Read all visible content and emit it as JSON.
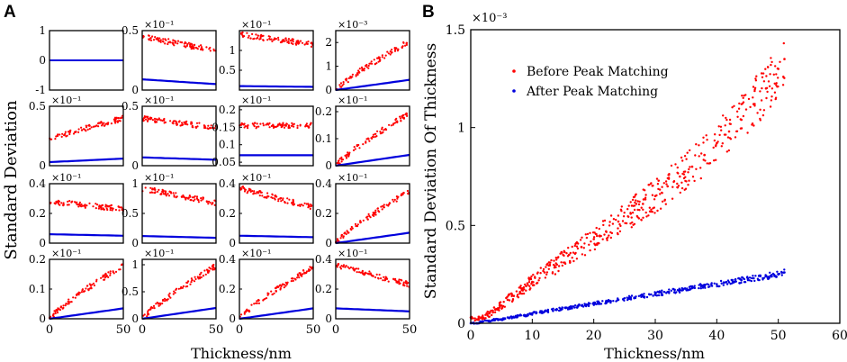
{
  "panel_labels": {
    "a": "A",
    "b": "B"
  },
  "colors": {
    "before": "#ff0000",
    "after": "#0000dd",
    "axis": "#000000"
  },
  "panel_a": {
    "xlabel": "Thickness/nm",
    "ylabel": "Standard Deviation",
    "x_ticks": [
      "0",
      "50"
    ],
    "subplots": [
      {
        "title": "",
        "yticks": [
          "1",
          "0",
          "-1"
        ],
        "ylim": [
          -1,
          1
        ],
        "before": {
          "start": 0,
          "end": 0
        },
        "after": {
          "start": 0,
          "end": 0
        }
      },
      {
        "title": "×10⁻¹",
        "yticks": [
          "0.5",
          "0"
        ],
        "ylim": [
          0,
          0.5
        ],
        "before": {
          "start": 0.45,
          "end": 0.33
        },
        "after": {
          "start": 0.09,
          "end": 0.05
        }
      },
      {
        "title": "×10⁻¹",
        "yticks": [
          "1",
          "0.5"
        ],
        "ylim": [
          0,
          1.5
        ],
        "before": {
          "start": 1.4,
          "end": 1.15
        },
        "after": {
          "start": 0.1,
          "end": 0.08
        }
      },
      {
        "title": "×10⁻³",
        "yticks": [
          "2",
          "1",
          "0"
        ],
        "ylim": [
          0,
          2.5
        ],
        "before": {
          "start": 0,
          "end": 2.05
        },
        "after": {
          "start": 0,
          "end": 0.43
        }
      },
      {
        "title": "×10⁻¹",
        "yticks": [
          "0.5",
          "0"
        ],
        "ylim": [
          0,
          0.5
        ],
        "before": {
          "start": 0.23,
          "end": 0.4
        },
        "after": {
          "start": 0.03,
          "end": 0.06
        }
      },
      {
        "title": "×10⁻¹",
        "yticks": [
          "0.5",
          "0"
        ],
        "ylim": [
          0,
          0.5
        ],
        "before": {
          "start": 0.4,
          "end": 0.32
        },
        "after": {
          "start": 0.07,
          "end": 0.05
        }
      },
      {
        "title": "×10⁻¹",
        "yticks": [
          "0.2",
          "0.15",
          "0.1",
          "0.05"
        ],
        "ylim": [
          0.04,
          0.21
        ],
        "before": {
          "start": 0.155,
          "end": 0.155
        },
        "after": {
          "start": 0.07,
          "end": 0.07
        }
      },
      {
        "title": "×10⁻¹",
        "yticks": [
          "0.2",
          "0.1",
          "0"
        ],
        "ylim": [
          0,
          0.22
        ],
        "before": {
          "start": 0,
          "end": 0.195
        },
        "after": {
          "start": 0,
          "end": 0.04
        }
      },
      {
        "title": "×10⁻¹",
        "yticks": [
          "0.4",
          "0.2",
          "0"
        ],
        "ylim": [
          0,
          0.4
        ],
        "before": {
          "start": 0.28,
          "end": 0.23
        },
        "after": {
          "start": 0.06,
          "end": 0.05
        }
      },
      {
        "title": "×10⁻¹",
        "yticks": [
          "1",
          "0.5",
          "0"
        ],
        "ylim": [
          0,
          1
        ],
        "before": {
          "start": 0.92,
          "end": 0.68
        },
        "after": {
          "start": 0.12,
          "end": 0.09
        }
      },
      {
        "title": "×10⁻¹",
        "yticks": [
          "0.4",
          "0.2",
          "0"
        ],
        "ylim": [
          0,
          0.4
        ],
        "before": {
          "start": 0.37,
          "end": 0.24
        },
        "after": {
          "start": 0.05,
          "end": 0.04
        }
      },
      {
        "title": "×10⁻¹",
        "yticks": [
          "0.4",
          "0.2",
          "0"
        ],
        "ylim": [
          0,
          0.4
        ],
        "before": {
          "start": 0,
          "end": 0.35
        },
        "after": {
          "start": 0,
          "end": 0.07
        }
      },
      {
        "title": "×10⁻¹",
        "yticks": [
          "0.2",
          "0.1",
          "0"
        ],
        "ylim": [
          0,
          0.2
        ],
        "before": {
          "start": 0,
          "end": 0.18
        },
        "after": {
          "start": 0,
          "end": 0.035
        }
      },
      {
        "title": "×10⁻¹",
        "yticks": [
          "1",
          "0.5",
          "0"
        ],
        "ylim": [
          0,
          1.1
        ],
        "before": {
          "start": 0,
          "end": 0.98
        },
        "after": {
          "start": 0,
          "end": 0.2
        }
      },
      {
        "title": "×10⁻¹",
        "yticks": [
          "0.4",
          "0.2",
          "0"
        ],
        "ylim": [
          0,
          0.4
        ],
        "before": {
          "start": 0,
          "end": 0.35
        },
        "after": {
          "start": 0,
          "end": 0.07
        }
      },
      {
        "title": "×10⁻¹",
        "yticks": [
          "0.4",
          "0.2",
          "0"
        ],
        "ylim": [
          0,
          0.4
        ],
        "before": {
          "start": 0.36,
          "end": 0.23
        },
        "after": {
          "start": 0.07,
          "end": 0.05
        }
      }
    ]
  },
  "chart_data": {
    "type": "scatter",
    "title": "",
    "multiplier": "×10⁻³",
    "xlabel": "Thickness/nm",
    "ylabel": "Standard Deviation Of Thickness",
    "xlim": [
      0,
      60
    ],
    "ylim": [
      0,
      1.5
    ],
    "x_ticks": [
      0,
      10,
      20,
      30,
      40,
      50,
      60
    ],
    "y_ticks": [
      0,
      0.5,
      1,
      1.5
    ],
    "y_tick_labels": [
      "0",
      "0.5",
      "1",
      "1.5"
    ],
    "legend_position": "top-left",
    "series": [
      {
        "name": "Before Peak Matching",
        "color": "#ff0000",
        "x": [
          0,
          1,
          2,
          3,
          4,
          5,
          6,
          7,
          8,
          9,
          10,
          12,
          14,
          16,
          18,
          20,
          22,
          24,
          26,
          28,
          30,
          32,
          34,
          36,
          38,
          40,
          42,
          44,
          46,
          48,
          50,
          51
        ],
        "y": [
          0.03,
          0.02,
          0.03,
          0.05,
          0.07,
          0.09,
          0.12,
          0.14,
          0.16,
          0.19,
          0.21,
          0.26,
          0.3,
          0.35,
          0.39,
          0.43,
          0.47,
          0.52,
          0.56,
          0.61,
          0.65,
          0.7,
          0.75,
          0.8,
          0.86,
          0.92,
          0.98,
          1.04,
          1.12,
          1.2,
          1.3,
          1.35
        ]
      },
      {
        "name": "After Peak Matching",
        "color": "#0000dd",
        "x": [
          0,
          1,
          2,
          3,
          4,
          5,
          6,
          7,
          8,
          9,
          10,
          12,
          14,
          16,
          18,
          20,
          22,
          24,
          26,
          28,
          30,
          32,
          34,
          36,
          38,
          40,
          42,
          44,
          46,
          48,
          50,
          51
        ],
        "y": [
          0.0,
          0.0,
          0.01,
          0.01,
          0.02,
          0.02,
          0.03,
          0.03,
          0.04,
          0.04,
          0.05,
          0.06,
          0.07,
          0.08,
          0.09,
          0.1,
          0.11,
          0.12,
          0.13,
          0.14,
          0.15,
          0.16,
          0.17,
          0.18,
          0.19,
          0.2,
          0.21,
          0.22,
          0.23,
          0.24,
          0.25,
          0.26
        ]
      }
    ]
  }
}
